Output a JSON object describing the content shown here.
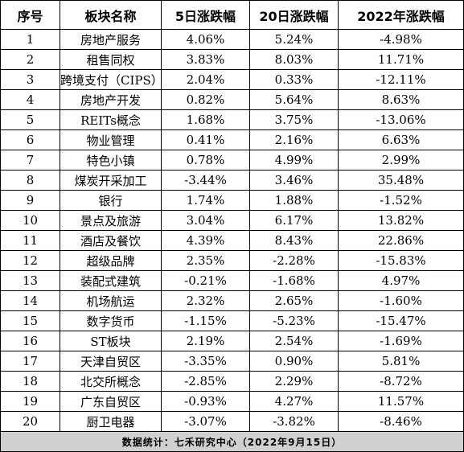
{
  "table": {
    "headers": [
      "序号",
      "板块名称",
      "5日涨跌幅",
      "20日涨跌幅",
      "2022年涨跌幅"
    ],
    "rows": [
      [
        "1",
        "房地产服务",
        "4.06%",
        "5.24%",
        "-4.98%"
      ],
      [
        "2",
        "租售同权",
        "3.83%",
        "8.03%",
        "11.71%"
      ],
      [
        "3",
        "跨境支付（CIPS）",
        "2.04%",
        "0.33%",
        "-12.11%"
      ],
      [
        "4",
        "房地产开发",
        "0.82%",
        "5.64%",
        "8.63%"
      ],
      [
        "5",
        "REITs概念",
        "1.68%",
        "3.75%",
        "-13.06%"
      ],
      [
        "6",
        "物业管理",
        "0.41%",
        "2.16%",
        "6.63%"
      ],
      [
        "7",
        "特色小镇",
        "0.78%",
        "4.99%",
        "2.99%"
      ],
      [
        "8",
        "煤炭开采加工",
        "-3.44%",
        "3.46%",
        "35.48%"
      ],
      [
        "9",
        "银行",
        "1.74%",
        "1.88%",
        "-1.52%"
      ],
      [
        "10",
        "景点及旅游",
        "3.04%",
        "6.17%",
        "13.82%"
      ],
      [
        "11",
        "酒店及餐饮",
        "4.39%",
        "8.43%",
        "22.86%"
      ],
      [
        "12",
        "超级品牌",
        "2.35%",
        "-2.28%",
        "-15.83%"
      ],
      [
        "13",
        "装配式建筑",
        "-0.21%",
        "-1.68%",
        "4.97%"
      ],
      [
        "14",
        "机场航运",
        "2.32%",
        "2.65%",
        "-1.60%"
      ],
      [
        "15",
        "数字货币",
        "-1.15%",
        "-5.23%",
        "-15.47%"
      ],
      [
        "16",
        "ST板块",
        "2.19%",
        "2.54%",
        "-1.69%"
      ],
      [
        "17",
        "天津自贸区",
        "-3.35%",
        "0.90%",
        "5.81%"
      ],
      [
        "18",
        "北交所概念",
        "-2.85%",
        "2.29%",
        "-8.72%"
      ],
      [
        "19",
        "广东自贸区",
        "-0.93%",
        "4.27%",
        "11.57%"
      ],
      [
        "20",
        "厨卫电器",
        "-3.07%",
        "-3.82%",
        "-8.46%"
      ]
    ],
    "footer": "数据统计：七禾研究中心（2022年9月15日）"
  }
}
